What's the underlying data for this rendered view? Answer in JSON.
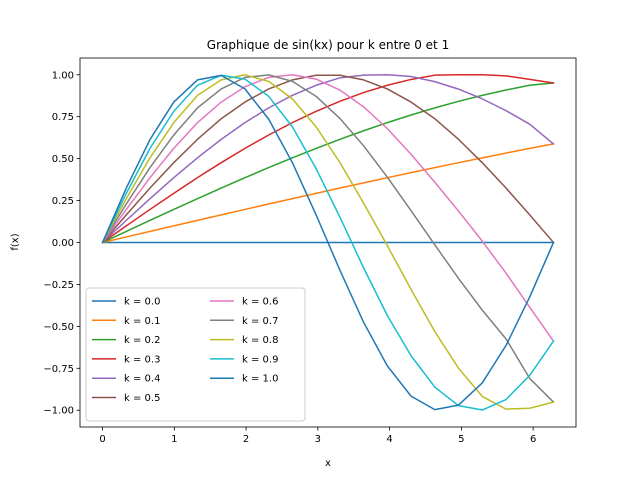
{
  "chart_data": {
    "type": "line",
    "title": "Graphique de sin(kx) pour k entre 0 et 1",
    "xlabel": "x",
    "ylabel": "f(x)",
    "xlim": [
      -0.3142,
      6.5973
    ],
    "ylim": [
      -1.1,
      1.1
    ],
    "x_ticks": [
      "0",
      "1",
      "2",
      "3",
      "4",
      "5",
      "6"
    ],
    "y_ticks": [
      "−1.00",
      "−0.75",
      "−0.50",
      "−0.25",
      "0.00",
      "0.25",
      "0.50",
      "0.75",
      "1.00"
    ],
    "x_tick_values": [
      0,
      1,
      2,
      3,
      4,
      5,
      6
    ],
    "y_tick_values": [
      -1.0,
      -0.75,
      -0.5,
      -0.25,
      0.0,
      0.25,
      0.5,
      0.75,
      1.0
    ],
    "grid": false,
    "legend_placement": "lower-left",
    "legend_columns": 2,
    "x": [
      0.0,
      0.3307,
      0.6614,
      0.9921,
      1.3228,
      1.6535,
      1.9842,
      2.3149,
      2.6456,
      2.9762,
      3.3069,
      3.6376,
      3.9683,
      4.299,
      4.6297,
      4.9604,
      5.2911,
      5.6218,
      5.9525,
      6.2832
    ],
    "series": [
      {
        "name": "k = 0.0",
        "color": "#1f77b4",
        "values": [
          0.0,
          0.0,
          0.0,
          0.0,
          0.0,
          0.0,
          0.0,
          0.0,
          0.0,
          0.0,
          0.0,
          0.0,
          0.0,
          0.0,
          0.0,
          0.0,
          0.0,
          0.0,
          0.0,
          0.0
        ]
      },
      {
        "name": "k = 0.1",
        "color": "#ff7f0e",
        "values": [
          0.0,
          0.0331,
          0.0661,
          0.0991,
          0.1319,
          0.1646,
          0.1971,
          0.2294,
          0.2614,
          0.2931,
          0.3247,
          0.3557,
          0.3864,
          0.4167,
          0.4465,
          0.4759,
          0.5048,
          0.5331,
          0.5609,
          0.5878
        ]
      },
      {
        "name": "k = 0.2",
        "color": "#2ca02c",
        "values": [
          0.0,
          0.0661,
          0.132,
          0.1971,
          0.2614,
          0.3247,
          0.3865,
          0.4466,
          0.5049,
          0.5611,
          0.6149,
          0.6662,
          0.7147,
          0.7602,
          0.8026,
          0.8418,
          0.8774,
          0.9093,
          0.9374,
          0.9511
        ]
      },
      {
        "name": "k = 0.3",
        "color": "#d62728",
        "values": [
          0.0,
          0.0991,
          0.1971,
          0.2931,
          0.3865,
          0.4759,
          0.5611,
          0.6408,
          0.7147,
          0.7819,
          0.8418,
          0.8938,
          0.9374,
          0.9721,
          0.9976,
          0.9999,
          0.9999,
          0.9935,
          0.9724,
          0.9511
        ]
      },
      {
        "name": "k = 0.4",
        "color": "#9467bd",
        "values": [
          0.0,
          0.1319,
          0.2614,
          0.3865,
          0.5049,
          0.6149,
          0.7147,
          0.8026,
          0.8774,
          0.9374,
          0.9817,
          0.9976,
          0.9999,
          0.9895,
          0.9593,
          0.9146,
          0.8564,
          0.7862,
          0.7054,
          0.5878
        ]
      },
      {
        "name": "k = 0.5",
        "color": "#8c564b",
        "values": [
          0.0,
          0.1646,
          0.3247,
          0.4759,
          0.6149,
          0.7381,
          0.8372,
          0.9157,
          0.9694,
          0.9969,
          0.9969,
          0.9694,
          0.9157,
          0.8372,
          0.7381,
          0.6149,
          0.4759,
          0.3247,
          0.1646,
          0.0
        ]
      },
      {
        "name": "k = 0.6",
        "color": "#e377c2",
        "values": [
          0.0,
          0.1971,
          0.3865,
          0.5611,
          0.7147,
          0.8372,
          0.9283,
          0.9842,
          0.9999,
          0.9742,
          0.9091,
          0.8087,
          0.6788,
          0.5264,
          0.3594,
          0.1869,
          0.0081,
          -0.1821,
          -0.3863,
          -0.5878
        ]
      },
      {
        "name": "k = 0.7",
        "color": "#7f7f7f",
        "values": [
          0.0,
          0.2294,
          0.4466,
          0.6408,
          0.8026,
          0.9157,
          0.9842,
          0.9993,
          0.9604,
          0.8715,
          0.7398,
          0.5764,
          0.3895,
          0.1897,
          -0.0138,
          -0.2141,
          -0.4032,
          -0.5745,
          -0.8108,
          -0.9511
        ]
      },
      {
        "name": "k = 0.8",
        "color": "#bcbd22",
        "values": [
          0.0,
          0.2614,
          0.5049,
          0.7147,
          0.8774,
          0.9694,
          0.9999,
          0.9604,
          0.8561,
          0.6893,
          0.4771,
          0.2346,
          -0.0187,
          -0.2803,
          -0.5307,
          -0.7493,
          -0.9176,
          -0.9934,
          -0.9884,
          -0.9511
        ]
      },
      {
        "name": "k = 0.9",
        "color": "#17becf",
        "values": [
          0.0,
          0.2931,
          0.5611,
          0.7819,
          0.9374,
          0.9969,
          0.9742,
          0.8715,
          0.6893,
          0.4402,
          0.1517,
          -0.1513,
          -0.4355,
          -0.6752,
          -0.8618,
          -0.9728,
          -0.9989,
          -0.9362,
          -0.7924,
          -0.5878
        ]
      },
      {
        "name": "k = 1.0",
        "color": "#1f77b4",
        "values": [
          0.0,
          0.3247,
          0.6142,
          0.8372,
          0.9694,
          0.9966,
          0.9158,
          0.7357,
          0.4759,
          0.1646,
          -0.1646,
          -0.4759,
          -0.7357,
          -0.9158,
          -0.9966,
          -0.9694,
          -0.8372,
          -0.6142,
          -0.3247,
          0.0
        ]
      }
    ]
  }
}
